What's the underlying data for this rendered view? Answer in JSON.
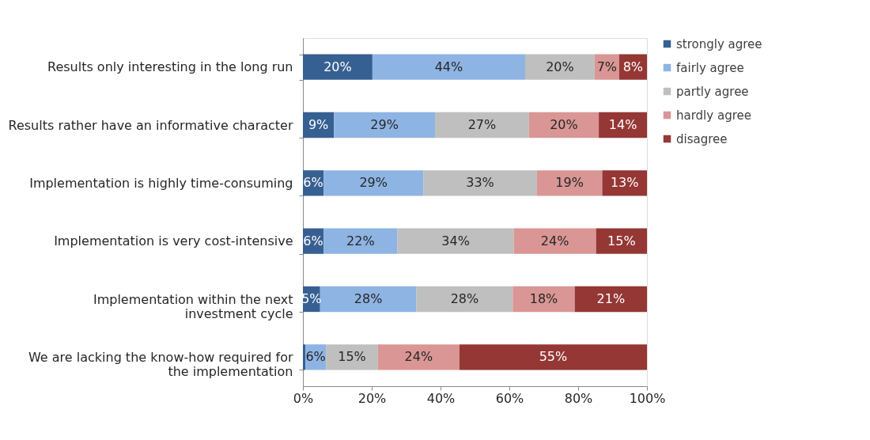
{
  "chart_data": {
    "type": "bar",
    "orientation": "horizontal",
    "stacked": true,
    "categories": [
      "Results only interesting in the long run",
      "Results rather have an informative character",
      "Implementation is highly time-consuming",
      "Implementation is very cost-intensive",
      "Implementation within the next\ninvestment cycle",
      "We are lacking the know-how required for\nthe implementation"
    ],
    "series": [
      {
        "name": "strongly agree",
        "color": "#376092",
        "values": [
          20.2,
          9.0,
          6.0,
          6.0,
          5.0,
          0.7
        ],
        "value_labels": [
          "20%",
          "9%",
          "6%",
          "6%",
          "5%",
          null
        ]
      },
      {
        "name": "fairly agree",
        "color": "#8eb4e3",
        "values": [
          44.4,
          29.4,
          29.0,
          21.5,
          28.0,
          6.0
        ],
        "value_labels": [
          "44%",
          "29%",
          "29%",
          "22%",
          "28%",
          "6%"
        ]
      },
      {
        "name": "partly agree",
        "color": "#bfbfbf",
        "values": [
          20.2,
          27.3,
          33.0,
          33.8,
          28.0,
          15.1
        ],
        "value_labels": [
          "20%",
          "27%",
          "33%",
          "34%",
          "28%",
          "15%"
        ]
      },
      {
        "name": "hardly agree",
        "color": "#d99694",
        "values": [
          7.1,
          20.3,
          19.0,
          23.9,
          18.0,
          23.7
        ],
        "value_labels": [
          "7%",
          "20%",
          "19%",
          "24%",
          "18%",
          "24%"
        ]
      },
      {
        "name": "disagree",
        "color": "#953735",
        "values": [
          8.1,
          14.0,
          13.0,
          14.8,
          21.0,
          54.5
        ],
        "value_labels": [
          "8%",
          "14%",
          "13%",
          "15%",
          "21%",
          "55%"
        ]
      }
    ],
    "xlim": [
      0,
      100
    ],
    "xticks": [
      {
        "value": 0,
        "label": "0%"
      },
      {
        "value": 20,
        "label": "20%"
      },
      {
        "value": 40,
        "label": "40%"
      },
      {
        "value": 60,
        "label": "60%"
      },
      {
        "value": 80,
        "label": "80%"
      },
      {
        "value": 100,
        "label": "100%"
      }
    ],
    "grid": false,
    "legend": "right"
  }
}
